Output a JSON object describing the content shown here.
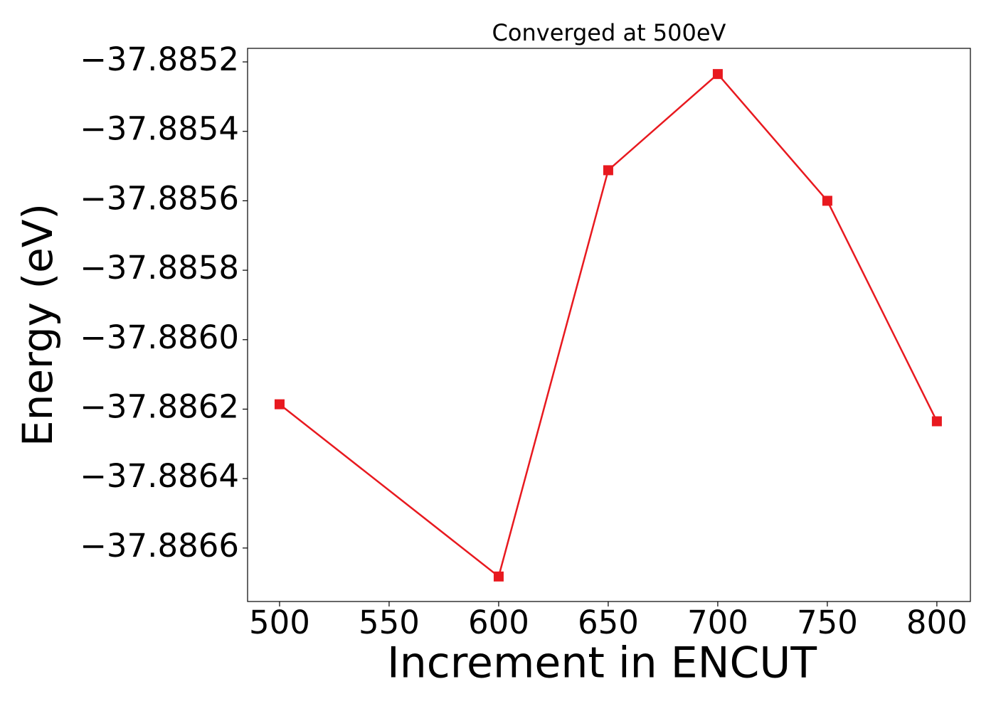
{
  "chart_data": {
    "type": "line",
    "title": "Converged at 500eV",
    "x_label": "Increment in ENCUT",
    "y_label": "Energy (eV)",
    "x": [
      500,
      600,
      650,
      700,
      750,
      800
    ],
    "series": [
      {
        "color": "#e8191f",
        "values": [
          -37.886186,
          -37.886682,
          -37.885512,
          -37.885235,
          -37.8856,
          -37.886235
        ]
      }
    ],
    "marker": "square",
    "xlim": [
      485.4,
      815.3
    ],
    "xticks": [
      500,
      550,
      600,
      650,
      700,
      750,
      800
    ],
    "ylim": [
      -37.886754,
      -37.885161
    ],
    "yticks": [
      {
        "value": -37.8866,
        "label": "−37.8866"
      },
      {
        "value": -37.8864,
        "label": "−37.8864"
      },
      {
        "value": -37.8862,
        "label": "−37.8862"
      },
      {
        "value": -37.886,
        "label": "−37.8860"
      },
      {
        "value": -37.8858,
        "label": "−37.8858"
      },
      {
        "value": -37.8856,
        "label": "−37.8856"
      },
      {
        "value": -37.8854,
        "label": "−37.8854"
      },
      {
        "value": -37.8852,
        "label": "−37.8852"
      }
    ],
    "grid": false
  }
}
